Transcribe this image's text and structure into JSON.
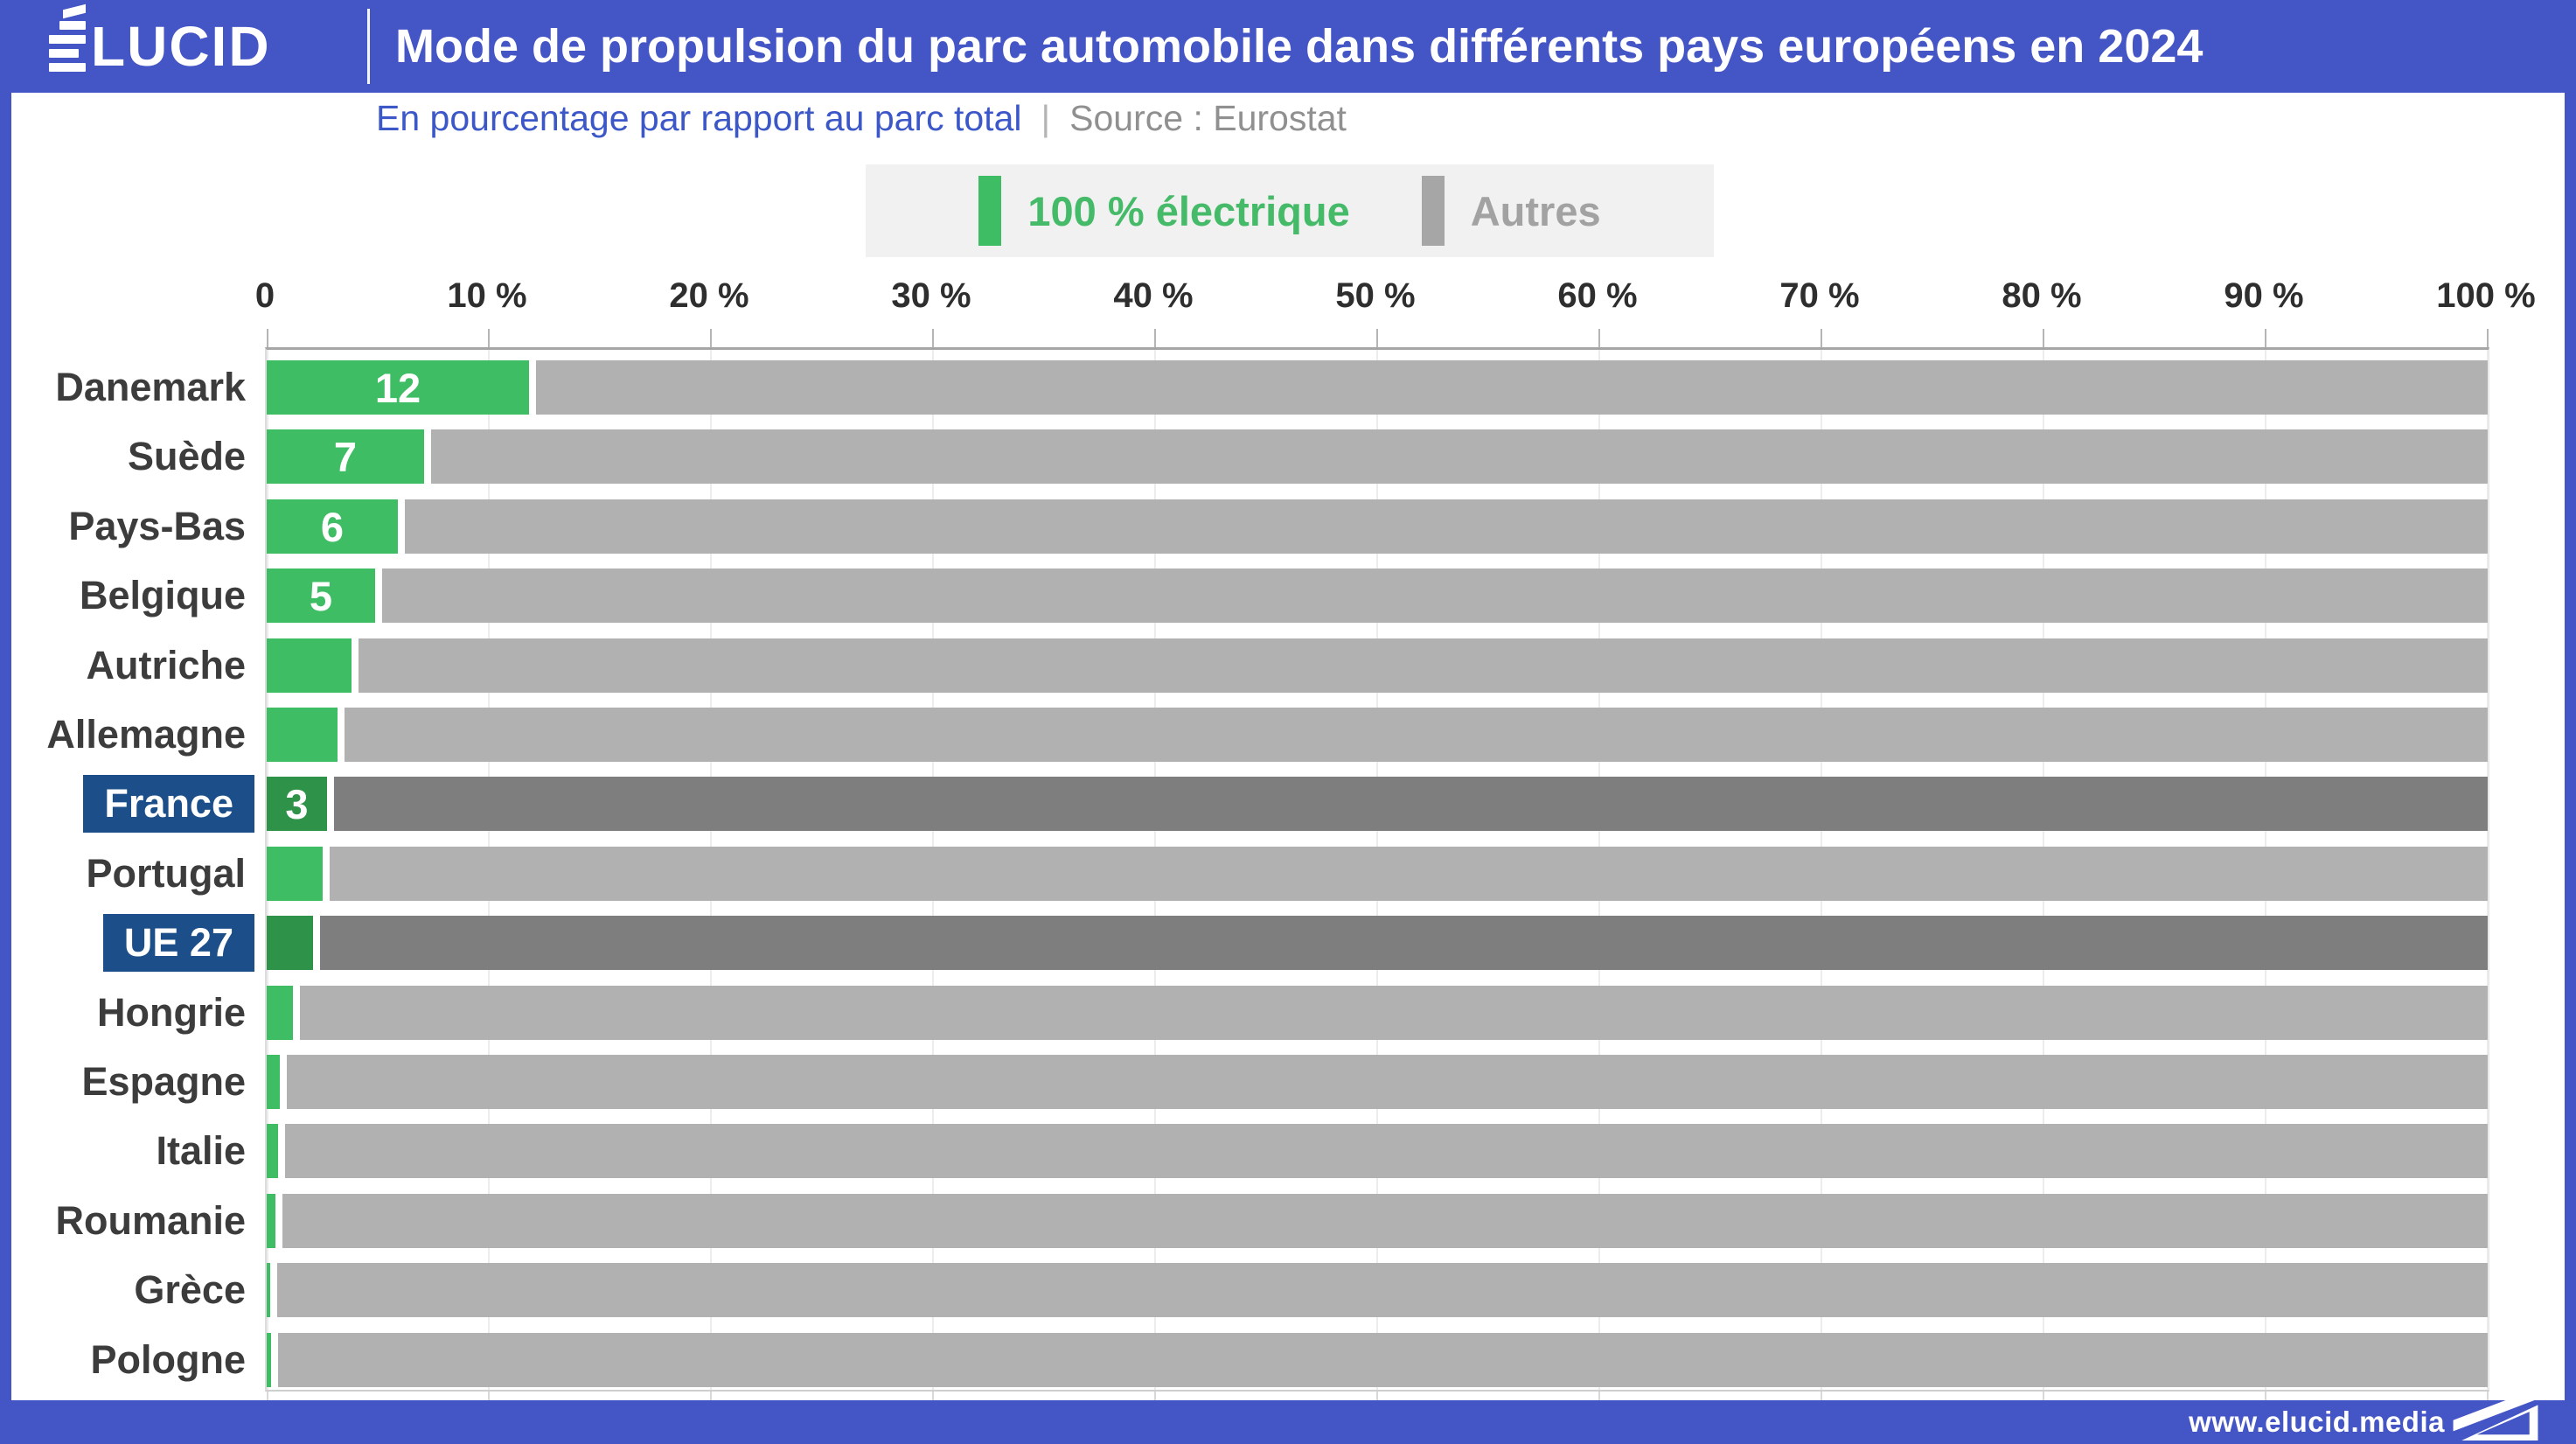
{
  "header": {
    "logo": "ÉLUCID",
    "logo_rest": "LUCID",
    "title": "Mode de propulsion du parc automobile dans différents pays européens en 2024"
  },
  "subtitle": {
    "text": "En pourcentage par rapport au parc total",
    "separator": "|",
    "source": "Source : Eurostat"
  },
  "legend": {
    "electric_label": "100 % électrique",
    "others_label": "Autres"
  },
  "axis": {
    "tick_labels": [
      "0",
      "10 %",
      "20 %",
      "30 %",
      "40 %",
      "50 %",
      "60 %",
      "70 %",
      "80 %",
      "90 %",
      "100 %"
    ]
  },
  "chart_data": {
    "type": "bar",
    "orientation": "horizontal",
    "stacked": true,
    "unit": "percent of total fleet",
    "xlim": [
      0,
      100
    ],
    "tick_values": [
      0,
      10,
      20,
      30,
      40,
      50,
      60,
      70,
      80,
      90,
      100
    ],
    "title": "Mode de propulsion du parc automobile dans différents pays européens en 2024",
    "xlabel": "",
    "ylabel": "",
    "legend_position": "top",
    "grid": "faint vertical ticks between rows",
    "categories": [
      "Danemark",
      "Suède",
      "Pays-Bas",
      "Belgique",
      "Autriche",
      "Allemagne",
      "France",
      "Portugal",
      "UE 27",
      "Hongrie",
      "Espagne",
      "Italie",
      "Roumanie",
      "Grèce",
      "Pologne"
    ],
    "series": [
      {
        "name": "100 % électrique",
        "values": [
          11.8,
          7.1,
          5.9,
          4.9,
          3.8,
          3.2,
          2.7,
          2.5,
          2.1,
          1.2,
          0.6,
          0.5,
          0.4,
          0.1,
          0.2
        ]
      },
      {
        "name": "Autres",
        "values": [
          88.2,
          92.9,
          94.1,
          95.1,
          96.2,
          96.8,
          97.3,
          97.5,
          97.9,
          98.8,
          99.4,
          99.5,
          99.6,
          99.9,
          99.8
        ]
      }
    ],
    "bar_labels": [
      "12",
      "7",
      "6",
      "5",
      "",
      "",
      "3",
      "",
      "",
      "",
      "",
      "",
      "",
      "",
      ""
    ],
    "highlighted": [
      "France",
      "UE 27"
    ]
  },
  "colors": {
    "brand_blue": "#4455c5",
    "highlight_navy": "#1c4e89",
    "electric_green": "#3ebd64",
    "electric_green_highlight": "#2e9348",
    "autres_grey": "#b1b1b1",
    "autres_grey_highlight": "#7e7e7e",
    "legend_bg": "#f1f1f1",
    "subtitle_blue": "#3c57c8",
    "source_grey": "#909090"
  },
  "footer": {
    "url": "www.elucid.media"
  }
}
